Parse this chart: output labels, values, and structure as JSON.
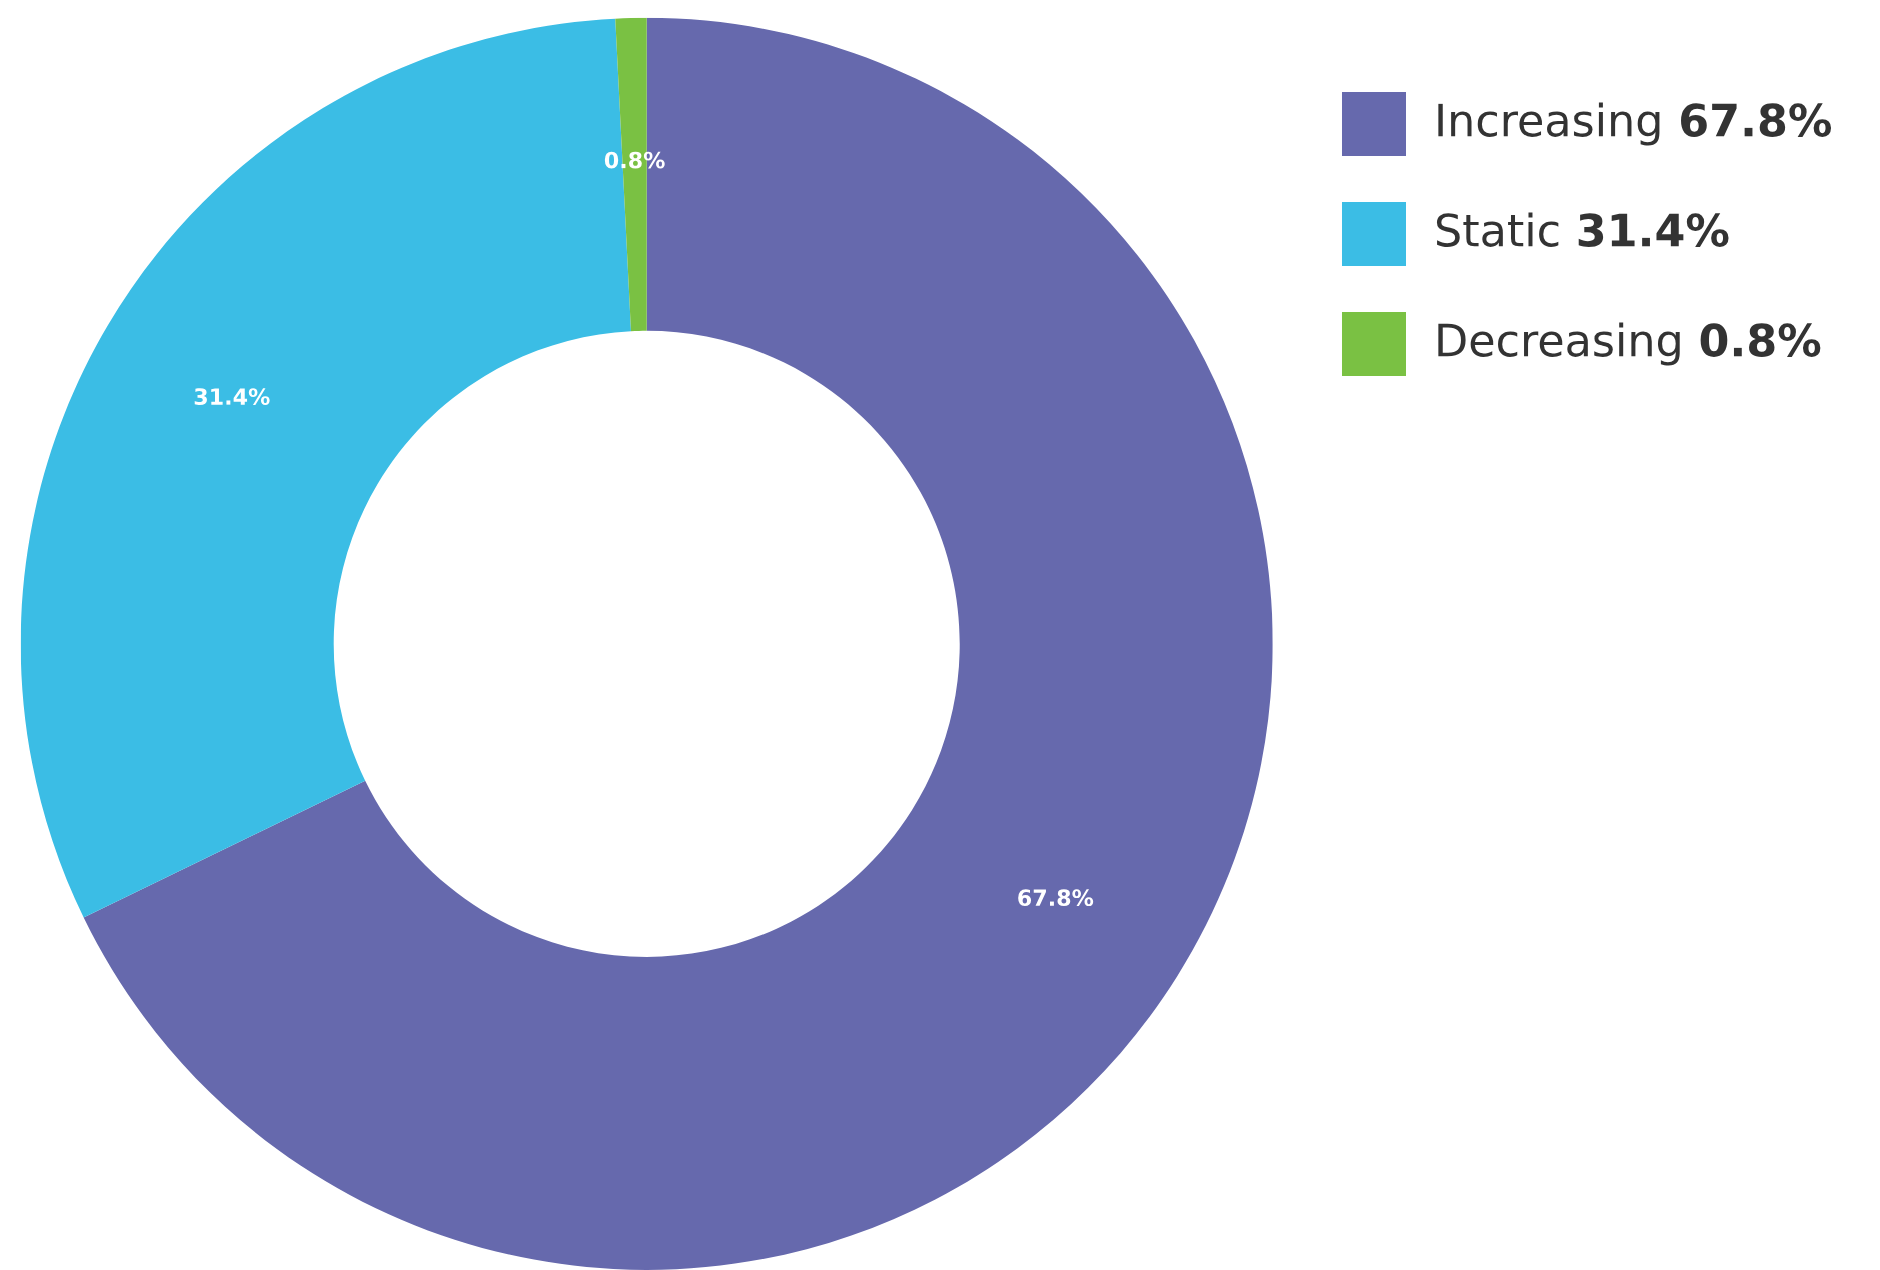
{
  "chart_data": {
    "type": "donut",
    "categories": [
      "Increasing",
      "Static",
      "Decreasing"
    ],
    "values": [
      67.8,
      31.4,
      0.8
    ],
    "value_labels": [
      "67.8%",
      "31.4%",
      "0.8%"
    ],
    "colors": [
      "#6669ad",
      "#3bbde5",
      "#7ac143"
    ],
    "legend": "top right"
  }
}
